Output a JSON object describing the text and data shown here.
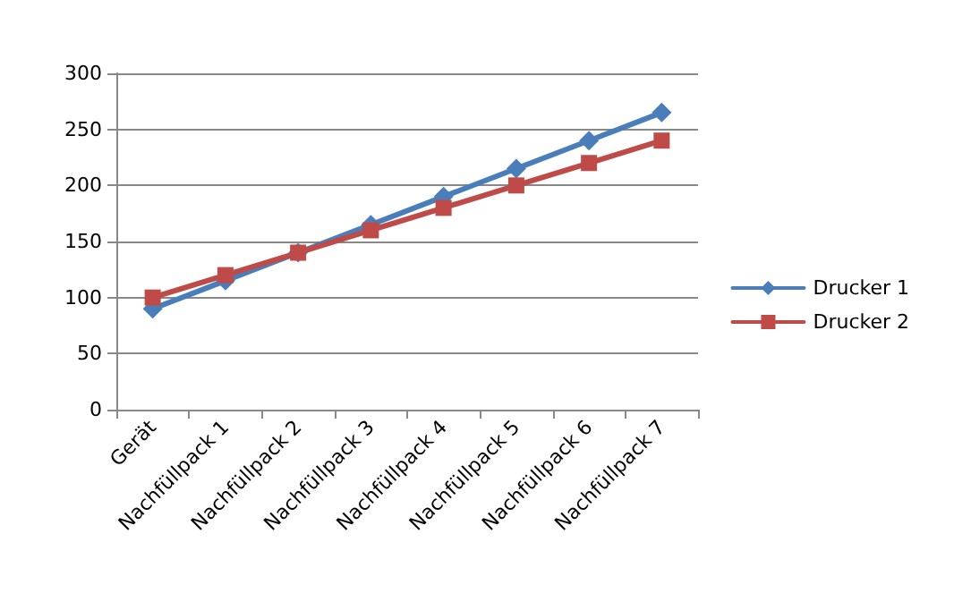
{
  "chart_data": {
    "type": "line",
    "categories": [
      "Gerät",
      "Nachfüllpack 1",
      "Nachfüllpack 2",
      "Nachfüllpack 3",
      "Nachfüllpack 4",
      "Nachfüllpack 5",
      "Nachfüllpack 6",
      "Nachfüllpack 7"
    ],
    "series": [
      {
        "name": "Drucker 1",
        "color": "#4a7ebb",
        "marker": "diamond",
        "values": [
          90,
          115,
          140,
          165,
          190,
          215,
          240,
          265
        ]
      },
      {
        "name": "Drucker 2",
        "color": "#be4b48",
        "marker": "square",
        "values": [
          100,
          120,
          140,
          160,
          180,
          200,
          220,
          240
        ]
      }
    ],
    "ylim": [
      0,
      300
    ],
    "yticks": [
      0,
      50,
      100,
      150,
      200,
      250,
      300
    ],
    "grid": "y",
    "legend": "right",
    "line_style": "solid"
  }
}
